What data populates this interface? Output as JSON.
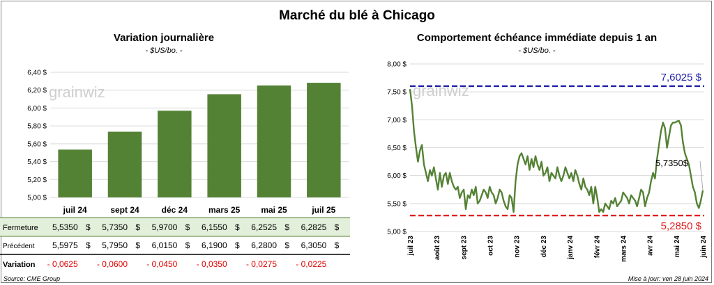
{
  "title": "Marché du blé à Chicago",
  "left_panel": {
    "title": "Variation  journalière",
    "subtitle": "- $US/bo. -"
  },
  "right_panel": {
    "title": "Comportement  échéance  immédiate  depuis  1  an",
    "subtitle": "- $US/bo. -"
  },
  "watermark": "grainwiz",
  "table": {
    "rows": [
      {
        "label": "Fermeture",
        "values": [
          "5,5350",
          "5,7350",
          "5,9700",
          "6,1550",
          "6,2525",
          "6,2825"
        ],
        "currency": "$"
      },
      {
        "label": "Précédent",
        "values": [
          "5,5975",
          "5,7950",
          "6,0150",
          "6,1900",
          "6,2800",
          "6,3050"
        ],
        "currency": "$"
      },
      {
        "label": "Variation",
        "values": [
          "- 0,0625",
          "- 0,0600",
          "- 0,0450",
          "- 0,0350",
          "- 0,0275",
          "- 0,0225"
        ]
      }
    ]
  },
  "footer": {
    "source": "Source: CME Group",
    "updated": "Mise à jour: ven 28 juin 2024"
  },
  "colors": {
    "bar": "#548235",
    "line": "#548235",
    "high_line": "#1f1fa8",
    "low_line": "#e02020",
    "negative": "#e00000",
    "close_row_bg": "#e2efda"
  },
  "chart_data": [
    {
      "type": "bar",
      "title": "Variation  journalière",
      "subtitle": "- $US/bo. -",
      "categories": [
        "juil 24",
        "sept 24",
        "déc 24",
        "mars 25",
        "mai 25",
        "juil 25"
      ],
      "values": [
        5.535,
        5.735,
        5.97,
        6.155,
        6.2525,
        6.2825
      ],
      "ylim": [
        5.0,
        6.4
      ],
      "yticks": [
        "5,00 $",
        "5,20 $",
        "5,40 $",
        "5,60 $",
        "5,80 $",
        "6,00 $",
        "6,20 $",
        "6,40 $"
      ]
    },
    {
      "type": "line",
      "title": "Comportement  échéance  immédiate  depuis  1  an",
      "subtitle": "- $US/bo. -",
      "ylim": [
        5.0,
        8.0
      ],
      "yticks": [
        "5,00 $",
        "5,50 $",
        "6,00 $",
        "6,50 $",
        "7,00 $",
        "7,50 $",
        "8,00 $"
      ],
      "xlabels": [
        "juil 23",
        "août 23",
        "sept 23",
        "oct 23",
        "nov 23",
        "déc 23",
        "janv 24",
        "févr 24",
        "mars 24",
        "avr 24",
        "mai 24",
        "juin 24"
      ],
      "reference_lines": [
        {
          "name": "high",
          "value": 7.6025,
          "label": "7,6025 $"
        },
        {
          "name": "low",
          "value": 5.285,
          "label": "5,2850 $"
        }
      ],
      "last_value_label": "5,7350$",
      "values": [
        7.55,
        7.25,
        6.8,
        6.5,
        6.25,
        6.45,
        6.55,
        6.2,
        6.05,
        5.9,
        6.1,
        6.0,
        6.15,
        5.95,
        5.75,
        6.05,
        5.8,
        6.0,
        6.05,
        5.85,
        6.05,
        5.9,
        5.8,
        5.75,
        5.8,
        5.6,
        5.7,
        5.75,
        5.4,
        5.65,
        5.6,
        5.75,
        5.65,
        5.8,
        5.5,
        5.55,
        5.65,
        5.75,
        5.7,
        5.6,
        5.8,
        5.7,
        5.65,
        5.5,
        5.6,
        5.75,
        5.7,
        5.55,
        5.45,
        5.4,
        5.65,
        5.6,
        5.35,
        5.9,
        6.2,
        6.35,
        6.4,
        6.3,
        6.2,
        6.35,
        6.1,
        6.3,
        6.15,
        6.35,
        6.2,
        6.1,
        6.25,
        6.0,
        6.05,
        6.15,
        5.9,
        6.05,
        6.0,
        5.95,
        6.15,
        6.0,
        5.9,
        6.0,
        6.15,
        6.05,
        5.95,
        6.05,
        5.9,
        6.1,
        6.0,
        5.85,
        5.75,
        5.95,
        5.8,
        5.75,
        5.65,
        5.8,
        5.5,
        5.8,
        5.6,
        5.35,
        5.4,
        5.35,
        5.5,
        5.45,
        5.4,
        5.55,
        5.5,
        5.6,
        5.45,
        5.5,
        5.55,
        5.7,
        5.65,
        5.6,
        5.5,
        5.65,
        5.6,
        5.55,
        5.45,
        5.6,
        5.75,
        5.7,
        5.45,
        5.6,
        5.7,
        5.9,
        6.05,
        5.95,
        6.3,
        6.55,
        6.8,
        6.95,
        6.85,
        6.5,
        6.7,
        6.9,
        6.95,
        6.95,
        6.97,
        6.98,
        6.9,
        6.6,
        6.4,
        6.3,
        6.2,
        6.0,
        5.8,
        5.7,
        5.5,
        5.42,
        5.55,
        5.735
      ]
    }
  ]
}
